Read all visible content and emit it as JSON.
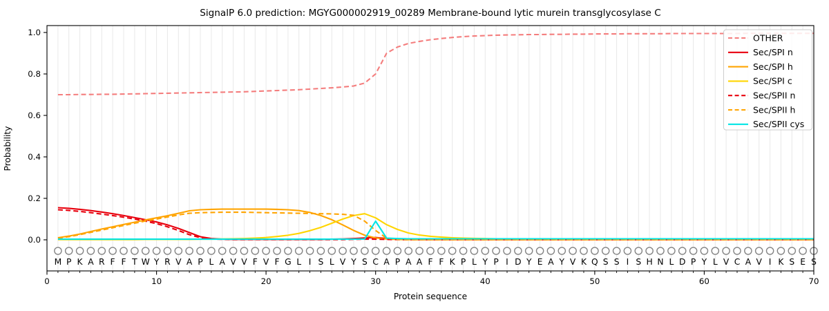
{
  "title": "SignalP 6.0 prediction: MGYG000002919_00289 Membrane-bound lytic murein transglycosylase C",
  "chart_data": {
    "type": "line",
    "title": "SignalP 6.0 prediction: MGYG000002919_00289 Membrane-bound lytic murein transglycosylase C",
    "xlabel": "Protein sequence",
    "ylabel": "Probability",
    "xlim": [
      0,
      70
    ],
    "ylim": [
      -0.15,
      1.03
    ],
    "grid": "vertical line at every residue position",
    "legend_position": "upper right",
    "x_tick_labels": [
      "0",
      "10",
      "20",
      "30",
      "40",
      "50",
      "60",
      "70"
    ],
    "x_tick_values": [
      0,
      10,
      20,
      30,
      40,
      50,
      60,
      70
    ],
    "y_tick_labels": [
      "0.0",
      "0.2",
      "0.4",
      "0.6",
      "0.8",
      "1.0"
    ],
    "y_tick_values": [
      0.0,
      0.2,
      0.4,
      0.6,
      0.8,
      1.0
    ],
    "colors": {
      "other": "#f47d7d",
      "red": "#e8000d",
      "orange": "#ffa400",
      "yellow": "#ffd500",
      "cyan": "#00e5e5",
      "grid": "#e8e8e8",
      "residue_circle": "#848484",
      "residue_letter": "#1f1f1f"
    },
    "sequence": [
      "M",
      "P",
      "K",
      "A",
      "R",
      "F",
      "F",
      "T",
      "W",
      "Y",
      "R",
      "V",
      "A",
      "P",
      "L",
      "A",
      "V",
      "V",
      "F",
      "V",
      "F",
      "G",
      "L",
      "I",
      "S",
      "L",
      "V",
      "Y",
      "S",
      "C",
      "A",
      "P",
      "A",
      "A",
      "F",
      "F",
      "K",
      "P",
      "L",
      "Y",
      "P",
      "I",
      "D",
      "Y",
      "E",
      "A",
      "Y",
      "V",
      "K",
      "Q",
      "S",
      "S",
      "I",
      "S",
      "H",
      "N",
      "L",
      "D",
      "P",
      "Y",
      "L",
      "V",
      "C",
      "A",
      "V",
      "I",
      "K",
      "S",
      "E",
      "S"
    ],
    "x": [
      1,
      2,
      3,
      4,
      5,
      6,
      7,
      8,
      9,
      10,
      11,
      12,
      13,
      14,
      15,
      16,
      17,
      18,
      19,
      20,
      21,
      22,
      23,
      24,
      25,
      26,
      27,
      28,
      29,
      30,
      31,
      32,
      33,
      34,
      35,
      36,
      37,
      38,
      39,
      40,
      41,
      42,
      43,
      44,
      45,
      46,
      47,
      48,
      49,
      50,
      51,
      52,
      53,
      54,
      55,
      56,
      57,
      58,
      59,
      60,
      61,
      62,
      63,
      64,
      65,
      66,
      67,
      68,
      69,
      70
    ],
    "series": [
      {
        "name": "OTHER",
        "color": "#f47d7d",
        "style": "dashed",
        "values": [
          0.7,
          0.7,
          0.701,
          0.701,
          0.702,
          0.702,
          0.703,
          0.704,
          0.705,
          0.706,
          0.707,
          0.708,
          0.709,
          0.71,
          0.711,
          0.712,
          0.713,
          0.714,
          0.716,
          0.718,
          0.72,
          0.722,
          0.724,
          0.727,
          0.73,
          0.733,
          0.737,
          0.742,
          0.756,
          0.8,
          0.9,
          0.93,
          0.947,
          0.957,
          0.965,
          0.971,
          0.976,
          0.98,
          0.983,
          0.985,
          0.987,
          0.988,
          0.989,
          0.99,
          0.99,
          0.991,
          0.991,
          0.992,
          0.992,
          0.993,
          0.993,
          0.993,
          0.994,
          0.994,
          0.994,
          0.994,
          0.995,
          0.995,
          0.995,
          0.995,
          0.995,
          0.995,
          0.995,
          0.996,
          0.996,
          0.996,
          0.996,
          0.996,
          0.996,
          0.996
        ]
      },
      {
        "name": "Sec/SPI n",
        "color": "#e8000d",
        "style": "solid",
        "values": [
          0.155,
          0.152,
          0.147,
          0.141,
          0.134,
          0.126,
          0.117,
          0.107,
          0.097,
          0.086,
          0.072,
          0.055,
          0.035,
          0.015,
          0.006,
          0.003,
          0.002,
          0.002,
          0.002,
          0.002,
          0.002,
          0.002,
          0.002,
          0.002,
          0.002,
          0.003,
          0.004,
          0.006,
          0.009,
          0.011,
          0.007,
          0.003,
          0.002,
          0.001,
          0.001,
          0.001,
          0.001,
          0.001,
          0.001,
          0.001,
          0.001,
          0.001,
          0.001,
          0.001,
          0.001,
          0.001,
          0.001,
          0.001,
          0.001,
          0.001,
          0.001,
          0.001,
          0.001,
          0.001,
          0.001,
          0.001,
          0.001,
          0.001,
          0.001,
          0.001,
          0.001,
          0.001,
          0.001,
          0.001,
          0.001,
          0.001,
          0.001,
          0.001,
          0.001,
          0.001
        ]
      },
      {
        "name": "Sec/SPI h",
        "color": "#ffa400",
        "style": "solid",
        "values": [
          0.01,
          0.018,
          0.028,
          0.04,
          0.052,
          0.063,
          0.074,
          0.085,
          0.096,
          0.106,
          0.116,
          0.128,
          0.14,
          0.145,
          0.147,
          0.148,
          0.148,
          0.148,
          0.148,
          0.148,
          0.147,
          0.145,
          0.141,
          0.132,
          0.117,
          0.097,
          0.072,
          0.045,
          0.022,
          0.009,
          0.004,
          0.002,
          0.001,
          0.001,
          0.001,
          0.001,
          0.001,
          0.001,
          0.001,
          0.001,
          0.001,
          0.001,
          0.001,
          0.001,
          0.001,
          0.001,
          0.001,
          0.001,
          0.001,
          0.001,
          0.001,
          0.001,
          0.001,
          0.001,
          0.001,
          0.001,
          0.001,
          0.001,
          0.001,
          0.001,
          0.001,
          0.001,
          0.001,
          0.001,
          0.001,
          0.001,
          0.001,
          0.001,
          0.001,
          0.001
        ]
      },
      {
        "name": "Sec/SPI c",
        "color": "#ffd500",
        "style": "solid",
        "values": [
          0.001,
          0.001,
          0.001,
          0.001,
          0.001,
          0.001,
          0.001,
          0.001,
          0.002,
          0.002,
          0.002,
          0.002,
          0.002,
          0.003,
          0.003,
          0.004,
          0.005,
          0.006,
          0.008,
          0.011,
          0.016,
          0.022,
          0.031,
          0.044,
          0.06,
          0.08,
          0.1,
          0.117,
          0.126,
          0.106,
          0.073,
          0.05,
          0.033,
          0.023,
          0.017,
          0.013,
          0.01,
          0.008,
          0.007,
          0.006,
          0.005,
          0.005,
          0.004,
          0.004,
          0.004,
          0.003,
          0.003,
          0.003,
          0.003,
          0.003,
          0.003,
          0.003,
          0.003,
          0.003,
          0.003,
          0.003,
          0.003,
          0.003,
          0.003,
          0.003,
          0.003,
          0.003,
          0.003,
          0.003,
          0.003,
          0.003,
          0.003,
          0.003,
          0.003,
          0.003
        ]
      },
      {
        "name": "Sec/SPII n",
        "color": "#e8000d",
        "style": "dashed",
        "values": [
          0.145,
          0.142,
          0.137,
          0.131,
          0.124,
          0.117,
          0.109,
          0.1,
          0.09,
          0.078,
          0.063,
          0.045,
          0.025,
          0.01,
          0.004,
          0.002,
          0.001,
          0.001,
          0.001,
          0.001,
          0.001,
          0.001,
          0.001,
          0.001,
          0.001,
          0.001,
          0.001,
          0.002,
          0.003,
          0.003,
          0.002,
          0.001,
          0.001,
          0.001,
          0.001,
          0.001,
          0.001,
          0.001,
          0.001,
          0.001,
          0.001,
          0.001,
          0.001,
          0.001,
          0.001,
          0.001,
          0.001,
          0.001,
          0.001,
          0.001,
          0.001,
          0.001,
          0.001,
          0.001,
          0.001,
          0.001,
          0.001,
          0.001,
          0.001,
          0.001,
          0.001,
          0.001,
          0.001,
          0.001,
          0.001,
          0.001,
          0.001,
          0.001,
          0.001,
          0.001
        ]
      },
      {
        "name": "Sec/SPII h",
        "color": "#ffa400",
        "style": "dashed",
        "values": [
          0.008,
          0.015,
          0.025,
          0.036,
          0.047,
          0.058,
          0.069,
          0.08,
          0.091,
          0.1,
          0.11,
          0.12,
          0.128,
          0.131,
          0.132,
          0.133,
          0.133,
          0.133,
          0.132,
          0.131,
          0.13,
          0.129,
          0.128,
          0.127,
          0.126,
          0.125,
          0.123,
          0.118,
          0.09,
          0.045,
          0.008,
          0.002,
          0.001,
          0.001,
          0.001,
          0.001,
          0.001,
          0.001,
          0.001,
          0.001,
          0.001,
          0.001,
          0.001,
          0.001,
          0.001,
          0.001,
          0.001,
          0.001,
          0.001,
          0.001,
          0.001,
          0.001,
          0.001,
          0.001,
          0.001,
          0.001,
          0.001,
          0.001,
          0.001,
          0.001,
          0.001,
          0.001,
          0.001,
          0.001,
          0.001,
          0.001,
          0.001,
          0.001,
          0.001,
          0.001
        ]
      },
      {
        "name": "Sec/SPII cys",
        "color": "#00e5e5",
        "style": "solid",
        "values": [
          0.003,
          0.003,
          0.003,
          0.003,
          0.003,
          0.003,
          0.003,
          0.003,
          0.003,
          0.003,
          0.003,
          0.003,
          0.003,
          0.003,
          0.003,
          0.003,
          0.003,
          0.003,
          0.003,
          0.003,
          0.003,
          0.003,
          0.003,
          0.003,
          0.003,
          0.003,
          0.003,
          0.003,
          0.004,
          0.09,
          0.008,
          0.006,
          0.005,
          0.005,
          0.005,
          0.005,
          0.005,
          0.005,
          0.005,
          0.005,
          0.005,
          0.005,
          0.005,
          0.005,
          0.005,
          0.005,
          0.005,
          0.005,
          0.005,
          0.005,
          0.005,
          0.005,
          0.005,
          0.005,
          0.005,
          0.005,
          0.005,
          0.005,
          0.005,
          0.005,
          0.005,
          0.005,
          0.005,
          0.005,
          0.005,
          0.005,
          0.005,
          0.005,
          0.005,
          0.005
        ]
      }
    ]
  }
}
